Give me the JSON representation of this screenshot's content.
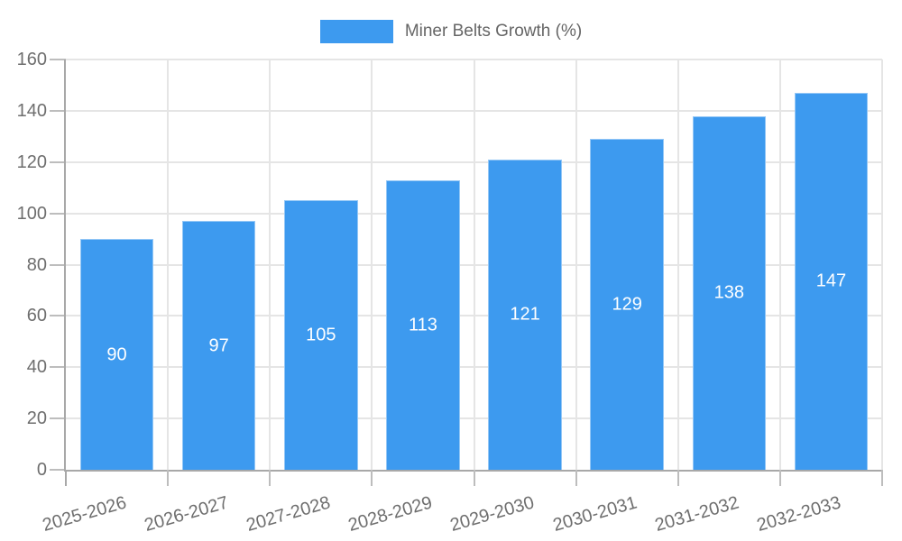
{
  "chart_data": {
    "type": "bar",
    "title": "Miner Belts Growth (%)",
    "legend": {
      "position": "top-center",
      "entries": [
        {
          "label": "Miner Belts Growth (%)",
          "color": "#3D9AEF"
        }
      ]
    },
    "categories": [
      "2025-2026",
      "2026-2027",
      "2027-2028",
      "2028-2029",
      "2029-2030",
      "2030-2031",
      "2031-2032",
      "2032-2033"
    ],
    "series": [
      {
        "name": "Miner Belts Growth (%)",
        "values": [
          90,
          97,
          105,
          113,
          121,
          129,
          138,
          147
        ]
      }
    ],
    "xlabel": "",
    "ylabel": "",
    "ylim": [
      0,
      160
    ],
    "yticks": [
      0,
      20,
      40,
      60,
      80,
      100,
      120,
      140,
      160
    ],
    "grid": "both",
    "value_labels_inside_bars": true,
    "colors": {
      "bar": "#3D9AEF",
      "value_label": "#FFFFFF",
      "grid": "#E5E5E5",
      "axis": "#A8A8A8",
      "tick": "#BDBDBD",
      "tick_text": "#6E6E6E",
      "background": "#FFFFFF"
    }
  }
}
